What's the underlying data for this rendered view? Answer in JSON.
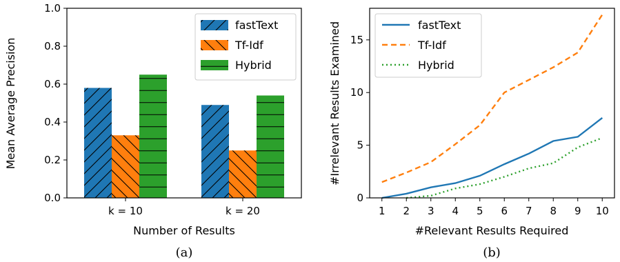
{
  "chart_data": [
    {
      "type": "bar",
      "caption": "(a)",
      "categories": [
        "k = 10",
        "k = 20"
      ],
      "series": [
        {
          "name": "fastText",
          "values": [
            0.58,
            0.49
          ],
          "color": "#1f77b4",
          "hatch": "/"
        },
        {
          "name": "Tf-Idf",
          "values": [
            0.33,
            0.25
          ],
          "color": "#ff7f0e",
          "hatch": "\\"
        },
        {
          "name": "Hybrid",
          "values": [
            0.65,
            0.54
          ],
          "color": "#2ca02c",
          "hatch": "-"
        }
      ],
      "xlabel": "Number of Results",
      "ylabel": "Mean Average Precision",
      "ylim": [
        0.0,
        1.0
      ],
      "yticks": [
        "0.0",
        "0.2",
        "0.4",
        "0.6",
        "0.8",
        "1.0"
      ],
      "legend": "top-right",
      "grid": false
    },
    {
      "type": "line",
      "caption": "(b)",
      "x": [
        1,
        2,
        3,
        4,
        5,
        6,
        7,
        8,
        9,
        10
      ],
      "series": [
        {
          "name": "fastText",
          "values": [
            0.0,
            0.4,
            1.0,
            1.4,
            2.1,
            3.2,
            4.2,
            5.4,
            5.8,
            7.6
          ],
          "color": "#1f77b4",
          "style": "solid"
        },
        {
          "name": "Tf-Idf",
          "values": [
            1.5,
            2.4,
            3.4,
            5.1,
            6.9,
            10.0,
            11.2,
            12.4,
            13.8,
            17.4
          ],
          "color": "#ff7f0e",
          "style": "dashed"
        },
        {
          "name": "Hybrid",
          "values": [
            null,
            0.0,
            0.2,
            0.9,
            1.3,
            2.0,
            2.8,
            3.3,
            4.8,
            5.7
          ],
          "color": "#2ca02c",
          "style": "dotted"
        }
      ],
      "xlabel": "#Relevant Results Required",
      "ylabel": "#Irrelevant Results Examined",
      "xlim": [
        0.5,
        10.5
      ],
      "ylim": [
        0,
        18
      ],
      "xticks": [
        "1",
        "2",
        "3",
        "4",
        "5",
        "6",
        "7",
        "8",
        "9",
        "10"
      ],
      "yticks": [
        "0",
        "5",
        "10",
        "15"
      ],
      "legend": "top-left",
      "grid": false
    }
  ]
}
